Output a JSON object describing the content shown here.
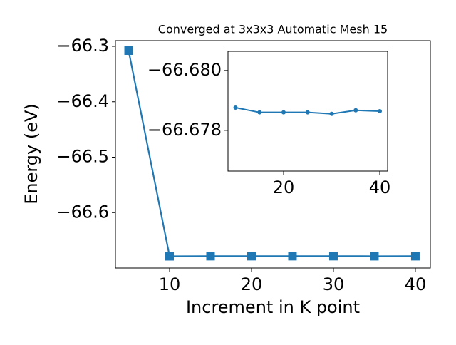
{
  "chart_data": [
    {
      "type": "line",
      "title": "Converged at 3x3x3 Automatic Mesh 15",
      "x_label": "Increment in K point",
      "y_label": "Energy (eV)",
      "x": [
        5,
        10,
        15,
        20,
        25,
        30,
        35,
        40
      ],
      "series": [
        {
          "color": "#1f77b4",
          "marker": "square",
          "values": [
            -66.3077,
            -66.67876,
            -66.6786,
            -66.6786,
            -66.6786,
            -66.67855,
            -66.67867,
            -66.67864
          ]
        }
      ],
      "xlim": [
        3.39,
        41.83
      ],
      "ylim": [
        -66.7,
        -66.2897
      ],
      "xticks": [
        10,
        20,
        30,
        40
      ],
      "yticks": [
        {
          "value": -66.6,
          "label": "−66.6"
        },
        {
          "value": -66.5,
          "label": "−66.5"
        },
        {
          "value": -66.4,
          "label": "−66.4"
        },
        {
          "value": -66.3,
          "label": "−66.3"
        }
      ]
    },
    {
      "type": "line",
      "x": [
        10,
        15,
        20,
        25,
        30,
        35,
        40
      ],
      "series": [
        {
          "color": "#1f77b4",
          "marker": "circle",
          "values": [
            -66.67876,
            -66.6786,
            -66.6786,
            -66.6786,
            -66.67855,
            -66.67867,
            -66.67864
          ]
        }
      ],
      "xlim": [
        8.44,
        41.63
      ],
      "ylim": [
        -66.67664,
        -66.68064
      ],
      "xticks": [
        20,
        40
      ],
      "yticks": [
        {
          "value": -66.678,
          "label": "−66.678"
        },
        {
          "value": -66.68,
          "label": "−66.680"
        }
      ]
    }
  ]
}
